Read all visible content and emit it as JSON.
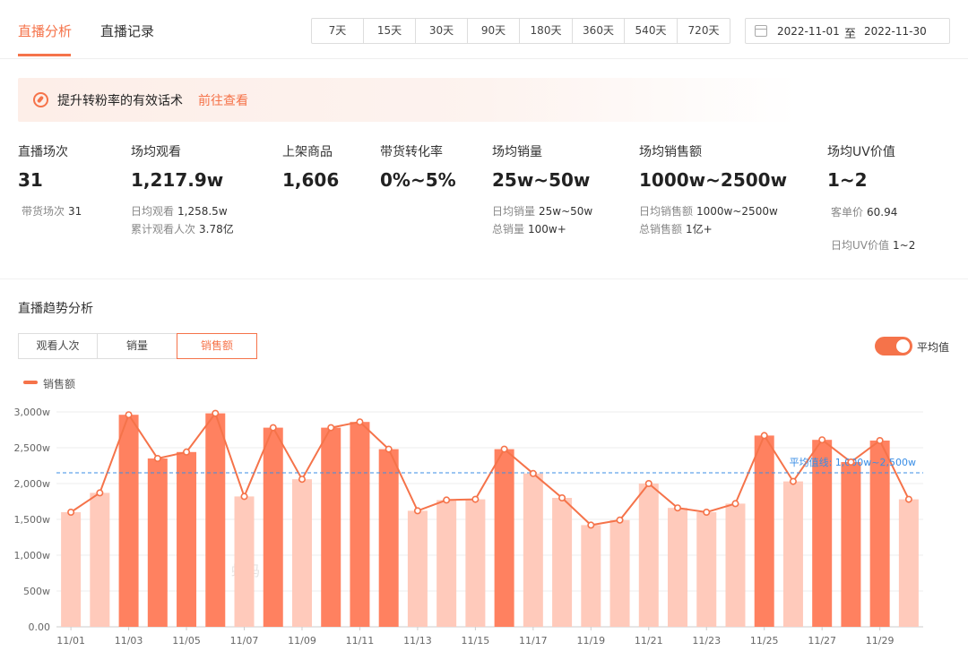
{
  "tabs": [
    {
      "label": "直播分析",
      "active": true
    },
    {
      "label": "直播记录",
      "active": false
    }
  ],
  "ranges": [
    "7天",
    "15天",
    "30天",
    "90天",
    "180天",
    "360天",
    "540天",
    "720天"
  ],
  "date_range": {
    "start": "2022-11-01",
    "separator": "至",
    "end": "2022-11-30"
  },
  "banner": {
    "text": "提升转粉率的有效话术",
    "link": "前往查看"
  },
  "stats": {
    "live_sessions": {
      "label": "直播场次",
      "value": "31",
      "sub": [
        {
          "k": "带货场次",
          "v": "31"
        }
      ]
    },
    "avg_views": {
      "label": "场均观看",
      "value": "1,217.9w",
      "sub": [
        {
          "k": "日均观看",
          "v": "1,258.5w"
        },
        {
          "k": "累计观看人次",
          "v": "3.78亿"
        }
      ]
    },
    "products": {
      "label": "上架商品",
      "value": "1,606"
    },
    "conversion": {
      "label": "带货转化率",
      "value": "0%~5%"
    },
    "avg_sales": {
      "label": "场均销量",
      "value": "25w~50w",
      "sub": [
        {
          "k": "日均销量",
          "v": "25w~50w"
        },
        {
          "k": "总销量",
          "v": "100w+"
        }
      ]
    },
    "avg_revenue": {
      "label": "场均销售额",
      "value": "1000w~2500w",
      "sub": [
        {
          "k": "日均销售额",
          "v": "1000w~2500w"
        },
        {
          "k": "总销售额",
          "v": "1亿+"
        }
      ]
    },
    "uv_value": {
      "label": "场均UV价值",
      "value": "1~2",
      "sub": [
        {
          "k": "客单价",
          "v": "60.94"
        },
        {
          "k": "日均UV价值",
          "v": "1~2"
        }
      ]
    }
  },
  "trend": {
    "title": "直播趋势分析",
    "metrics": [
      {
        "label": "观看人次",
        "active": false
      },
      {
        "label": "销量",
        "active": false
      },
      {
        "label": "销售额",
        "active": true
      }
    ],
    "avg_toggle_label": "平均值",
    "avg_toggle_on": true,
    "watermark": "蝉妈"
  },
  "colors": {
    "accent": "#f5734a",
    "bar_dark": "#ff8160",
    "bar_light": "#ffcabb",
    "avg_line": "#3a8ee6"
  },
  "chart_data": {
    "type": "bar",
    "legend": [
      "销售额"
    ],
    "ylim": [
      0,
      3000
    ],
    "y_ticks": [
      "0.00",
      "500w",
      "1,000w",
      "1,500w",
      "2,000w",
      "2,500w",
      "3,000w"
    ],
    "x_tick_labels": [
      "11/01",
      "11/03",
      "11/05",
      "11/07",
      "11/09",
      "11/11",
      "11/13",
      "11/15",
      "11/17",
      "11/19",
      "11/21",
      "11/23",
      "11/25",
      "11/27",
      "11/29"
    ],
    "values": [
      1600,
      1870,
      2960,
      2350,
      2440,
      2980,
      1820,
      2780,
      2060,
      2780,
      2860,
      2480,
      1620,
      1770,
      1780,
      2480,
      2140,
      1800,
      1420,
      1490,
      2000,
      1660,
      1600,
      1720,
      2670,
      2030,
      2610,
      2300,
      2600,
      1780
    ],
    "highlighted": [
      false,
      false,
      true,
      true,
      true,
      true,
      false,
      true,
      false,
      true,
      true,
      true,
      false,
      false,
      false,
      true,
      false,
      false,
      false,
      false,
      false,
      false,
      false,
      false,
      true,
      false,
      true,
      true,
      true,
      false
    ],
    "avg_line": {
      "value": 2150,
      "label": "平均值线: 1,000w~2,500w"
    }
  }
}
